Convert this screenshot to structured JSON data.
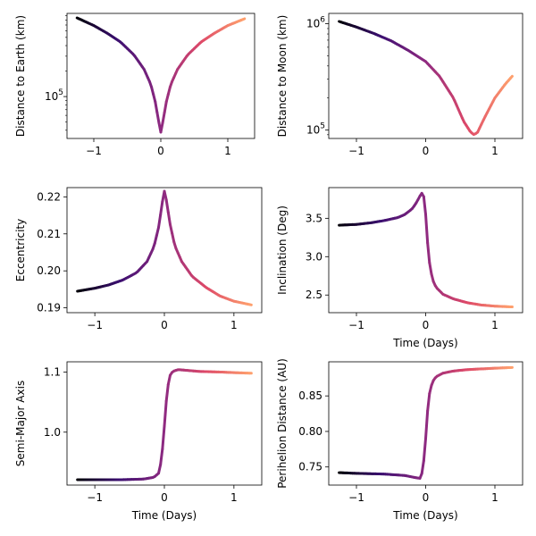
{
  "chart_data": [
    {
      "type": "line",
      "xlabel": "",
      "ylabel": "Distance to Earth (km)",
      "yscale": "log",
      "xlim": [
        -1.4,
        1.4
      ],
      "ylim": [
        32000,
        960000
      ],
      "x_ticks": [
        {
          "v": -1,
          "label": "−1"
        },
        {
          "v": 0,
          "label": "0"
        },
        {
          "v": 1,
          "label": "1"
        }
      ],
      "y_ticks": [
        {
          "v": 100000,
          "label": "10",
          "sup": "5"
        }
      ],
      "y_minor_ticks": [
        40000,
        50000,
        60000,
        70000,
        80000,
        90000,
        200000,
        300000,
        400000,
        500000,
        600000,
        700000,
        800000,
        900000
      ],
      "series": [
        {
          "x": [
            -1.25,
            -1.0,
            -0.8,
            -0.6,
            -0.4,
            -0.25,
            -0.15,
            -0.08,
            -0.04,
            0.0,
            0.04,
            0.08,
            0.15,
            0.25,
            0.4,
            0.6,
            0.8,
            1.0,
            1.25
          ],
          "y": [
            850000,
            690000,
            560000,
            440000,
            310000,
            210000,
            140000,
            85000,
            55000,
            38000,
            55000,
            85000,
            140000,
            210000,
            310000,
            440000,
            560000,
            690000,
            830000
          ]
        }
      ]
    },
    {
      "type": "line",
      "xlabel": "",
      "ylabel": "Distance to Moon (km)",
      "yscale": "log",
      "xlim": [
        -1.4,
        1.4
      ],
      "ylim": [
        83000,
        1250000
      ],
      "x_ticks": [
        {
          "v": -1,
          "label": "−1"
        },
        {
          "v": 0,
          "label": "0"
        },
        {
          "v": 1,
          "label": "1"
        }
      ],
      "y_ticks": [
        {
          "v": 100000,
          "label": "10",
          "sup": "5"
        },
        {
          "v": 1000000,
          "label": "10",
          "sup": "6"
        }
      ],
      "y_minor_ticks": [
        90000,
        200000,
        300000,
        400000,
        500000,
        600000,
        700000,
        800000,
        900000
      ],
      "series": [
        {
          "x": [
            -1.25,
            -1.0,
            -0.75,
            -0.5,
            -0.25,
            0.0,
            0.2,
            0.4,
            0.55,
            0.65,
            0.7,
            0.75,
            0.85,
            1.0,
            1.15,
            1.25
          ],
          "y": [
            1050000,
            930000,
            810000,
            690000,
            560000,
            440000,
            320000,
            200000,
            120000,
            95000,
            90000,
            95000,
            130000,
            200000,
            270000,
            320000
          ]
        }
      ]
    },
    {
      "type": "line",
      "xlabel": "",
      "ylabel": "Eccentricity",
      "yscale": "linear",
      "xlim": [
        -1.4,
        1.4
      ],
      "ylim": [
        0.1887,
        0.2225
      ],
      "x_ticks": [
        {
          "v": -1,
          "label": "−1"
        },
        {
          "v": 0,
          "label": "0"
        },
        {
          "v": 1,
          "label": "1"
        }
      ],
      "y_ticks": [
        {
          "v": 0.19,
          "label": "0.19"
        },
        {
          "v": 0.2,
          "label": "0.20"
        },
        {
          "v": 0.21,
          "label": "0.21"
        },
        {
          "v": 0.22,
          "label": "0.22"
        }
      ],
      "series": [
        {
          "x": [
            -1.25,
            -1.0,
            -0.8,
            -0.6,
            -0.4,
            -0.25,
            -0.15,
            -0.08,
            -0.03,
            0.0,
            0.03,
            0.08,
            0.15,
            0.25,
            0.4,
            0.6,
            0.8,
            1.0,
            1.25
          ],
          "y": [
            0.1945,
            0.1953,
            0.1962,
            0.1975,
            0.1995,
            0.2025,
            0.2065,
            0.212,
            0.2185,
            0.2215,
            0.219,
            0.2128,
            0.2068,
            0.2025,
            0.1985,
            0.1955,
            0.1932,
            0.1918,
            0.1908
          ]
        }
      ]
    },
    {
      "type": "line",
      "xlabel": "Time (Days)",
      "ylabel": "Inclination (Deg)",
      "yscale": "linear",
      "xlim": [
        -1.4,
        1.4
      ],
      "ylim": [
        2.27,
        3.9
      ],
      "x_ticks": [
        {
          "v": -1,
          "label": "−1"
        },
        {
          "v": 0,
          "label": "0"
        },
        {
          "v": 1,
          "label": "1"
        }
      ],
      "y_ticks": [
        {
          "v": 2.5,
          "label": "2.5"
        },
        {
          "v": 3.0,
          "label": "3.0"
        },
        {
          "v": 3.5,
          "label": "3.5"
        }
      ],
      "series": [
        {
          "x": [
            -1.25,
            -1.0,
            -0.8,
            -0.6,
            -0.4,
            -0.3,
            -0.2,
            -0.15,
            -0.1,
            -0.06,
            -0.03,
            0.0,
            0.03,
            0.06,
            0.1,
            0.15,
            0.25,
            0.4,
            0.6,
            0.8,
            1.0,
            1.25
          ],
          "y": [
            3.41,
            3.42,
            3.44,
            3.47,
            3.51,
            3.55,
            3.62,
            3.68,
            3.76,
            3.83,
            3.8,
            3.55,
            3.15,
            2.88,
            2.7,
            2.6,
            2.51,
            2.45,
            2.4,
            2.37,
            2.355,
            2.345
          ]
        }
      ]
    },
    {
      "type": "line",
      "xlabel": "Time (Days)",
      "ylabel": "Semi-Major Axis",
      "yscale": "linear",
      "xlim": [
        -1.4,
        1.4
      ],
      "ylim": [
        0.912,
        1.117
      ],
      "x_ticks": [
        {
          "v": -1,
          "label": "−1"
        },
        {
          "v": 0,
          "label": "0"
        },
        {
          "v": 1,
          "label": "1"
        }
      ],
      "y_ticks": [
        {
          "v": 1.0,
          "label": "1.0"
        },
        {
          "v": 1.1,
          "label": "1.1"
        }
      ],
      "series": [
        {
          "x": [
            -1.25,
            -1.0,
            -0.6,
            -0.3,
            -0.15,
            -0.08,
            -0.04,
            0.0,
            0.04,
            0.08,
            0.12,
            0.2,
            0.3,
            0.5,
            0.8,
            1.0,
            1.25
          ],
          "y": [
            0.921,
            0.921,
            0.921,
            0.922,
            0.925,
            0.932,
            0.955,
            1.01,
            1.07,
            1.094,
            1.101,
            1.104,
            1.103,
            1.101,
            1.1,
            1.099,
            1.098
          ]
        }
      ]
    },
    {
      "type": "line",
      "xlabel": "Time (Days)",
      "ylabel": "Perihelion Distance (AU)",
      "yscale": "linear",
      "xlim": [
        -1.4,
        1.4
      ],
      "ylim": [
        0.7245,
        0.898
      ],
      "x_ticks": [
        {
          "v": -1,
          "label": "−1"
        },
        {
          "v": 0,
          "label": "0"
        },
        {
          "v": 1,
          "label": "1"
        }
      ],
      "y_ticks": [
        {
          "v": 0.75,
          "label": "0.75"
        },
        {
          "v": 0.8,
          "label": "0.80"
        },
        {
          "v": 0.85,
          "label": "0.85"
        }
      ],
      "series": [
        {
          "x": [
            -1.25,
            -1.0,
            -0.6,
            -0.3,
            -0.15,
            -0.08,
            -0.04,
            0.0,
            0.03,
            0.06,
            0.1,
            0.15,
            0.25,
            0.4,
            0.6,
            0.8,
            1.0,
            1.25
          ],
          "y": [
            0.742,
            0.741,
            0.74,
            0.738,
            0.735,
            0.734,
            0.745,
            0.79,
            0.832,
            0.857,
            0.87,
            0.877,
            0.882,
            0.885,
            0.887,
            0.888,
            0.889,
            0.89
          ]
        }
      ]
    }
  ]
}
